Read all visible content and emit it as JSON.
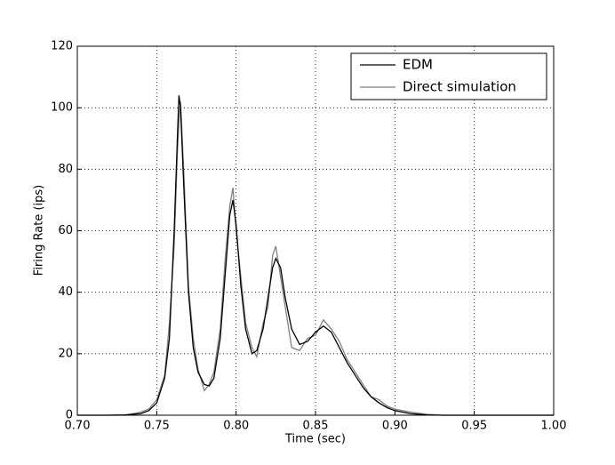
{
  "chart_data": {
    "type": "line",
    "xlabel": "Time (sec)",
    "ylabel": "Firing Rate (ips)",
    "x": [
      0.7,
      0.72,
      0.73,
      0.74,
      0.745,
      0.75,
      0.755,
      0.758,
      0.761,
      0.763,
      0.764,
      0.765,
      0.767,
      0.77,
      0.773,
      0.776,
      0.78,
      0.783,
      0.786,
      0.79,
      0.793,
      0.796,
      0.798,
      0.8,
      0.803,
      0.806,
      0.81,
      0.813,
      0.817,
      0.82,
      0.823,
      0.825,
      0.828,
      0.831,
      0.835,
      0.84,
      0.845,
      0.85,
      0.855,
      0.86,
      0.865,
      0.87,
      0.875,
      0.88,
      0.885,
      0.89,
      0.895,
      0.9,
      0.91,
      0.92,
      0.93,
      1.0
    ],
    "series": [
      {
        "name": "EDM",
        "color": "#000000",
        "values": [
          0,
          0,
          0.1,
          0.5,
          1.5,
          4,
          12,
          25,
          60,
          90,
          104,
          100,
          75,
          40,
          22,
          14,
          10,
          9.5,
          12,
          25,
          45,
          65,
          70,
          62,
          42,
          28,
          20,
          21,
          28,
          38,
          48,
          51,
          48,
          38,
          28,
          23,
          24,
          27,
          29,
          27,
          22,
          17,
          13,
          9,
          6,
          4,
          2.5,
          1.5,
          0.5,
          0.1,
          0,
          0
        ]
      },
      {
        "name": "Direct simulation",
        "color": "#808080",
        "values": [
          0,
          0,
          0,
          1,
          2,
          5,
          13,
          30,
          55,
          85,
          95,
          102,
          80,
          42,
          25,
          15,
          8,
          10,
          14,
          28,
          50,
          68,
          74,
          60,
          45,
          30,
          22,
          19,
          30,
          35,
          52,
          55,
          45,
          35,
          22,
          21,
          25,
          26,
          31,
          28,
          24,
          18,
          14,
          10,
          6,
          5,
          3,
          2,
          1,
          0.3,
          0,
          0
        ]
      }
    ],
    "xlim": [
      0.7,
      1.0
    ],
    "xticks": [
      {
        "value": 0.7,
        "label": "0.70"
      },
      0.75,
      {
        "value": 0.8,
        "label": "0.80"
      },
      0.85,
      {
        "value": 0.9,
        "label": "0.90"
      },
      0.95,
      {
        "value": 1.0,
        "label": "1.00"
      }
    ],
    "ylim": [
      0,
      120
    ],
    "yticks": [
      0,
      20,
      40,
      60,
      80,
      100,
      120
    ],
    "grid": true,
    "legend": "upper right"
  }
}
